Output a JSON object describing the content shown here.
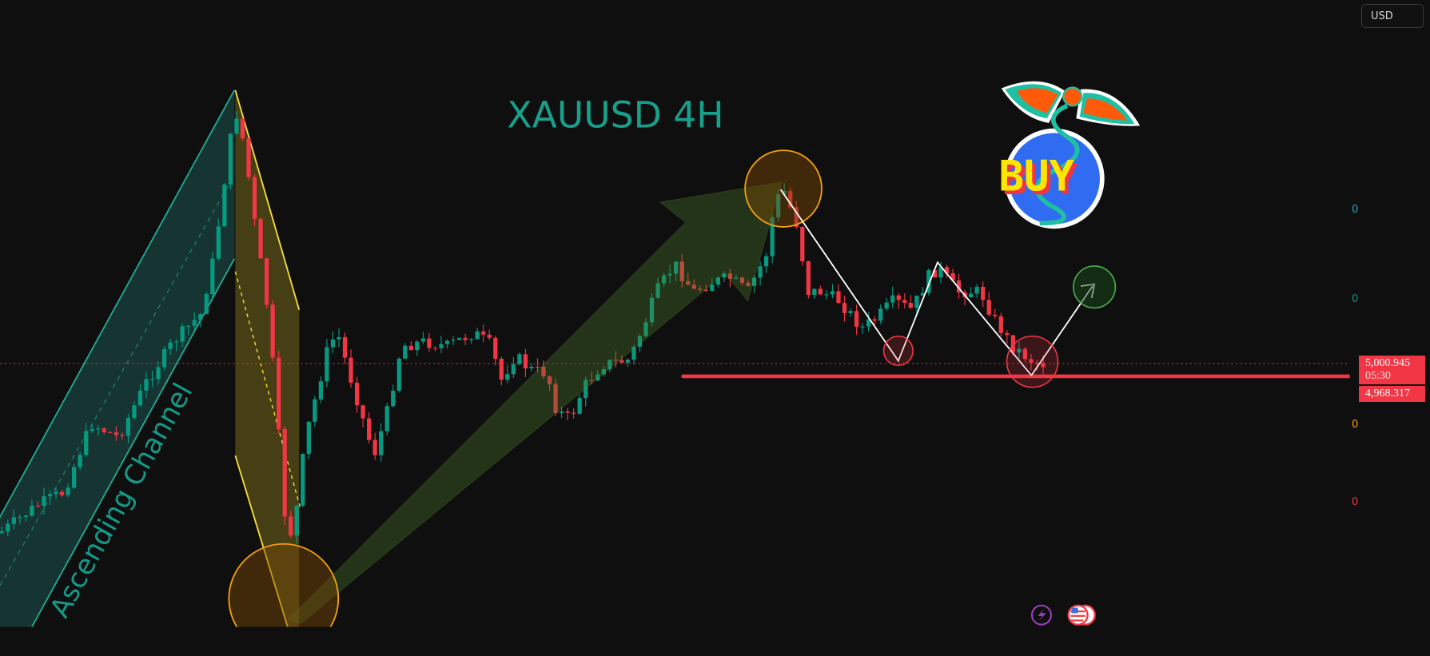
{
  "chart_data": {
    "type": "candlestick",
    "title": "XAUUSD 4H",
    "currency": "USD",
    "current_price": "5,000.945",
    "countdown": "05:30",
    "line_price": "4,968.317",
    "axis_labels": [
      "0",
      "0",
      "0",
      "0"
    ],
    "annotations": {
      "channel_label": "Ascending Channel",
      "logo_text": "BUY"
    }
  },
  "colors": {
    "up": "#089981",
    "down": "#f23645",
    "title": "#17a08b",
    "channel": "#22ab94",
    "fib": "#f7e03a",
    "circle": "#f5a00f",
    "axis_label_colors": [
      "#1fa3c5",
      "#138f79",
      "#f5a00f",
      "#f23645"
    ]
  },
  "toolbar": {
    "currency_button": "USD"
  },
  "icons": [
    "lightning-event-icon",
    "us-flag-icon",
    "us-flag-icon"
  ]
}
